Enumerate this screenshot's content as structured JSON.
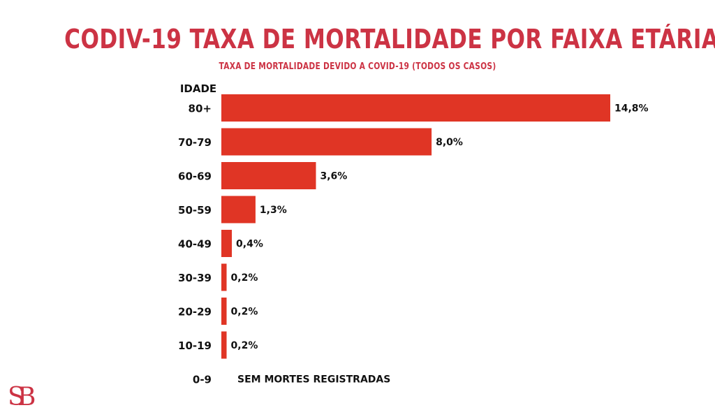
{
  "header": {
    "title": "CODIV-19  TAXA DE MORTALIDADE POR FAIXA ETÁRIA",
    "subtitle": "TAXA DE MORTALIDADE DEVIDO A COVID-19 (TODOS OS CASOS)"
  },
  "colors": {
    "accent": "#cc3344",
    "bar": "#e03525",
    "text": "#111111"
  },
  "chart_data": {
    "type": "bar",
    "orientation": "horizontal",
    "ylabel": "IDADE",
    "categories": [
      "80+",
      "70-79",
      "60-69",
      "50-59",
      "40-49",
      "30-39",
      "20-29",
      "10-19",
      "0-9"
    ],
    "values": [
      14.8,
      8.0,
      3.6,
      1.3,
      0.4,
      0.2,
      0.2,
      0.2,
      null
    ],
    "value_labels": [
      "14,8%",
      "8,0%",
      "3,6%",
      "1,3%",
      "0,4%",
      "0,2%",
      "0,2%",
      "0,2%",
      ""
    ],
    "no_data_note": "SEM MORTES REGISTRADAS",
    "xlim": [
      0,
      14.8
    ],
    "grid": false,
    "legend": "none"
  },
  "logo": {
    "icon": "sb-monogram-icon"
  }
}
